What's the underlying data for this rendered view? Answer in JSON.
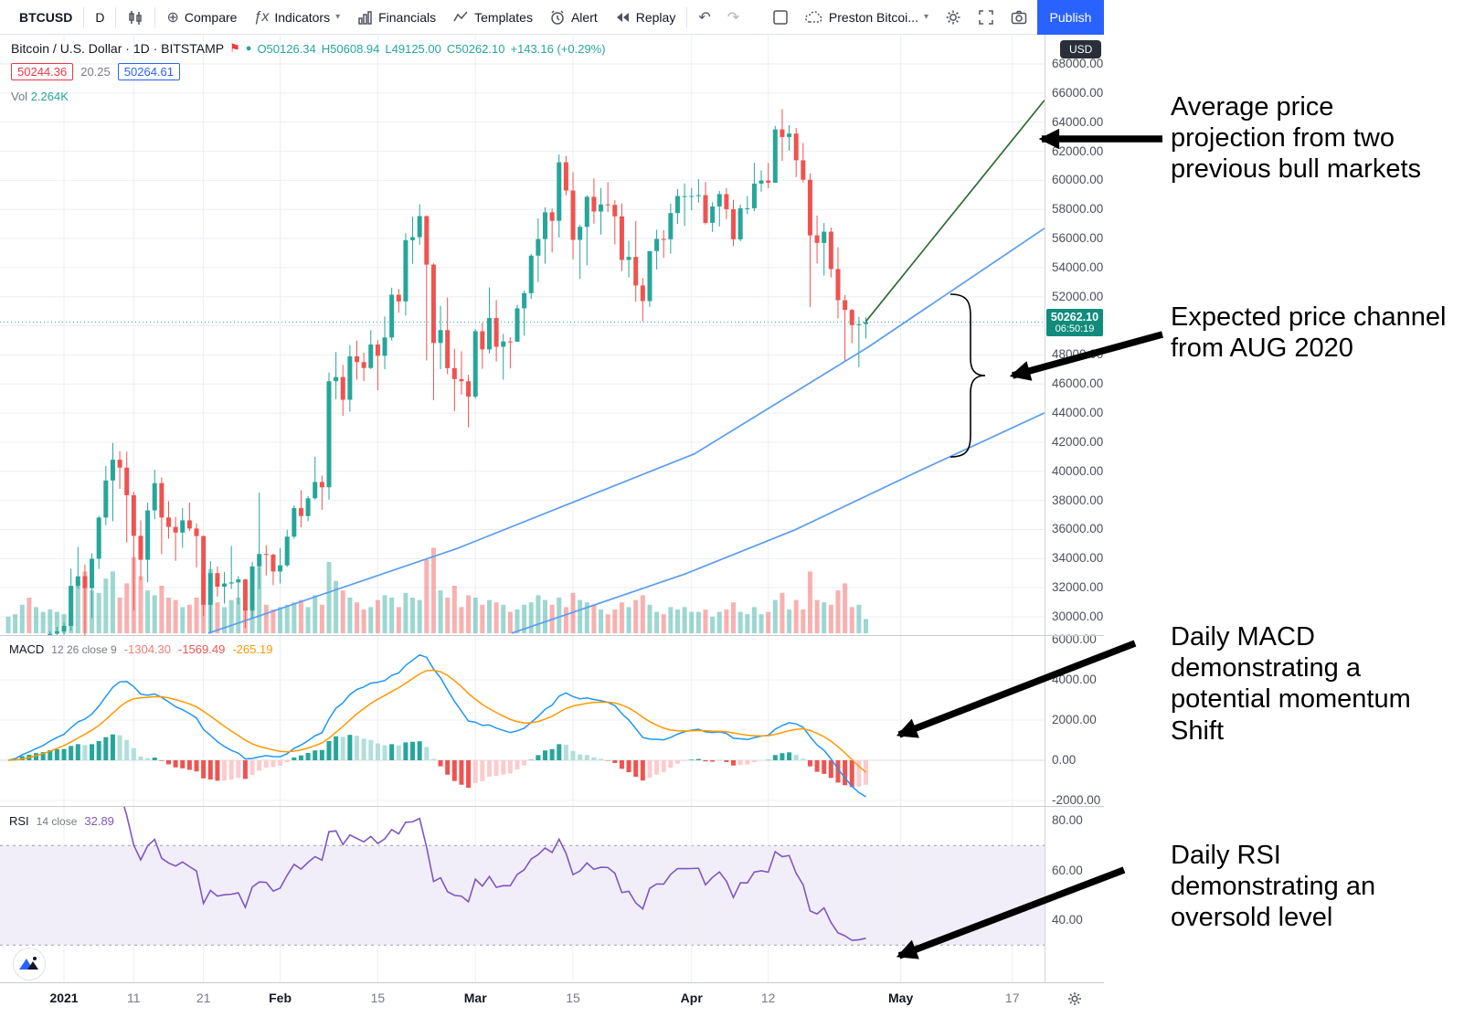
{
  "toolbar": {
    "symbol": "BTCUSD",
    "interval": "D",
    "compare": "Compare",
    "indicators": "Indicators",
    "financials": "Financials",
    "templates": "Templates",
    "alert": "Alert",
    "replay": "Replay",
    "account": "Preston Bitcoi...",
    "publish": "Publish"
  },
  "legend": {
    "series_title": "Bitcoin / U.S. Dollar · 1D · BITSTAMP",
    "o": "O50126.34",
    "h": "H50608.94",
    "l": "L49125.00",
    "c": "C50262.10",
    "change": "+143.16 (+0.29%)",
    "alert_price": "50244.36",
    "mid_value": "20.25",
    "order_price": "50264.61",
    "vol_label": "Vol",
    "vol_value": "2.264K"
  },
  "price_axis": {
    "currency": "USD",
    "tick_values": [
      68000,
      66000,
      64000,
      62000,
      60000,
      58000,
      56000,
      54000,
      52000,
      50000,
      48000,
      46000,
      44000,
      42000,
      40000,
      38000,
      36000,
      34000,
      32000,
      30000
    ],
    "badge_price": "50262.10",
    "badge_countdown": "06:50:19"
  },
  "time_axis": {
    "ticks": [
      {
        "d": 8,
        "label": "2021",
        "major": true
      },
      {
        "d": 18,
        "label": "11",
        "major": false
      },
      {
        "d": 28,
        "label": "21",
        "major": false
      },
      {
        "d": 39,
        "label": "Feb",
        "major": true
      },
      {
        "d": 53,
        "label": "15",
        "major": false
      },
      {
        "d": 67,
        "label": "Mar",
        "major": true
      },
      {
        "d": 81,
        "label": "15",
        "major": false
      },
      {
        "d": 98,
        "label": "Apr",
        "major": true
      },
      {
        "d": 109,
        "label": "12",
        "major": false
      },
      {
        "d": 128,
        "label": "May",
        "major": true
      },
      {
        "d": 144,
        "label": "17",
        "major": false
      }
    ]
  },
  "macd_panel": {
    "title": "MACD",
    "params": "12 26 close 9",
    "hist_value": "-1304.30",
    "macd_value": "-1569.49",
    "signal_value": "-265.19",
    "tick_values": [
      6000,
      4000,
      2000,
      0,
      -2000
    ]
  },
  "rsi_panel": {
    "title": "RSI",
    "params": "14 close",
    "value": "32.89",
    "tick_values": [
      80,
      60,
      40
    ],
    "band": [
      30,
      70
    ]
  },
  "annotations": [
    {
      "text": "Average price projection from two previous bull markets"
    },
    {
      "text": "Expected price channel from AUG 2020"
    },
    {
      "text": "Daily MACD demonstrating a potential momentum Shift"
    },
    {
      "text": "Daily RSI demonstrating an oversold level"
    }
  ],
  "colors": {
    "up": "#26a69a",
    "down": "#ef5350",
    "macd_line": "#2196f3",
    "signal_line": "#ff9800",
    "rsi_line": "#7e57c2",
    "channel": "#5b9cf0",
    "projection": "#2f6b33",
    "accent_blue": "#2962ff",
    "red": "#f23645"
  },
  "chart_data": {
    "type": "candlestick",
    "title": "Bitcoin / U.S. Dollar 1D BITSTAMP",
    "price_ylim": [
      28870,
      68000
    ],
    "x_unit": "daily candles, index 0 = leftmost",
    "candles": [
      [
        23241,
        23794,
        22765,
        23735,
        0.7
      ],
      [
        23735,
        24789,
        23463,
        24712,
        0.8
      ],
      [
        24712,
        26800,
        24500,
        26443,
        1.2
      ],
      [
        26443,
        28400,
        25850,
        26272,
        1.5
      ],
      [
        26272,
        27500,
        26100,
        27084,
        1.1
      ],
      [
        27084,
        27400,
        25900,
        27362,
        0.9
      ],
      [
        27362,
        29000,
        27320,
        28841,
        1.0
      ],
      [
        28841,
        29300,
        27850,
        28996,
        0.9
      ],
      [
        28996,
        29600,
        28650,
        29374,
        0.8
      ],
      [
        29374,
        33300,
        29050,
        32127,
        1.9
      ],
      [
        32127,
        34800,
        31960,
        32782,
        2.2
      ],
      [
        32782,
        33600,
        28130,
        31971,
        2.6
      ],
      [
        31971,
        34360,
        29900,
        33992,
        1.8
      ],
      [
        33992,
        36939,
        33288,
        36824,
        1.7
      ],
      [
        36824,
        40365,
        36300,
        39371,
        2.3
      ],
      [
        39371,
        41950,
        36565,
        40797,
        2.6
      ],
      [
        40797,
        41380,
        38800,
        40254,
        1.5
      ],
      [
        40254,
        41350,
        35111,
        38356,
        2.1
      ],
      [
        38356,
        38600,
        30420,
        35566,
        3.2
      ],
      [
        35566,
        36628,
        32531,
        33922,
        2.4
      ],
      [
        33922,
        37850,
        32380,
        37316,
        1.8
      ],
      [
        37316,
        40100,
        36701,
        39187,
        1.6
      ],
      [
        39187,
        39577,
        34298,
        36825,
        2.0
      ],
      [
        36825,
        37950,
        35372,
        36178,
        1.5
      ],
      [
        36178,
        36860,
        33850,
        35791,
        1.4
      ],
      [
        35791,
        37470,
        34742,
        36630,
        1.1
      ],
      [
        36630,
        37857,
        35900,
        36069,
        1.2
      ],
      [
        36069,
        36415,
        33400,
        35547,
        1.5
      ],
      [
        35547,
        35600,
        30071,
        30825,
        2.5
      ],
      [
        30825,
        33826,
        28850,
        33005,
        2.7
      ],
      [
        33005,
        33456,
        31390,
        32067,
        1.3
      ],
      [
        32067,
        33071,
        30900,
        32289,
        1.1
      ],
      [
        32289,
        34875,
        31910,
        32366,
        1.4
      ],
      [
        32366,
        32794,
        30837,
        32569,
        1.5
      ],
      [
        32569,
        32600,
        29241,
        30432,
        1.8
      ],
      [
        30432,
        33783,
        29891,
        33466,
        1.6
      ],
      [
        33466,
        38531,
        31915,
        34316,
        2.8
      ],
      [
        34316,
        34934,
        32840,
        34269,
        1.2
      ],
      [
        34269,
        34342,
        32171,
        33114,
        1.0
      ],
      [
        33114,
        34717,
        32296,
        33537,
        1.1
      ],
      [
        33537,
        35984,
        33418,
        35510,
        1.2
      ],
      [
        35510,
        37662,
        35362,
        37472,
        1.3
      ],
      [
        37472,
        38708,
        36161,
        36926,
        1.4
      ],
      [
        36926,
        38310,
        36570,
        38144,
        1.1
      ],
      [
        38144,
        41000,
        38057,
        39266,
        1.6
      ],
      [
        39266,
        39700,
        37351,
        38903,
        1.2
      ],
      [
        38903,
        46794,
        38057,
        46196,
        3.0
      ],
      [
        46196,
        48200,
        44961,
        46481,
        2.2
      ],
      [
        46481,
        47310,
        43812,
        44918,
        1.8
      ],
      [
        44918,
        48678,
        44100,
        47909,
        1.5
      ],
      [
        47909,
        48985,
        46300,
        47504,
        1.3
      ],
      [
        47504,
        48150,
        46202,
        47105,
        1.0
      ],
      [
        47105,
        49700,
        47014,
        48717,
        1.1
      ],
      [
        48717,
        49011,
        45570,
        47945,
        1.4
      ],
      [
        47945,
        50645,
        47016,
        49199,
        1.6
      ],
      [
        49199,
        52618,
        49001,
        52140,
        1.5
      ],
      [
        52140,
        52530,
        50901,
        51679,
        1.1
      ],
      [
        51679,
        56370,
        50710,
        55888,
        1.7
      ],
      [
        55888,
        57508,
        54260,
        56099,
        1.5
      ],
      [
        56099,
        58350,
        55577,
        57539,
        1.4
      ],
      [
        57539,
        57600,
        47622,
        54207,
        3.1
      ],
      [
        54207,
        54300,
        44888,
        48824,
        3.6
      ],
      [
        48824,
        51374,
        47027,
        49705,
        1.8
      ],
      [
        49705,
        51948,
        46674,
        47093,
        1.5
      ],
      [
        47093,
        48424,
        44137,
        46339,
        2.0
      ],
      [
        46339,
        48253,
        45269,
        46188,
        1.1
      ],
      [
        46188,
        46638,
        43016,
        45137,
        1.6
      ],
      [
        45137,
        49790,
        44989,
        49631,
        1.5
      ],
      [
        49631,
        50200,
        47047,
        48378,
        1.2
      ],
      [
        48378,
        52640,
        48100,
        50538,
        1.4
      ],
      [
        50538,
        51773,
        47542,
        48561,
        1.3
      ],
      [
        48561,
        49448,
        46300,
        48927,
        1.2
      ],
      [
        48927,
        49206,
        47070,
        48912,
        0.9
      ],
      [
        48912,
        51450,
        48882,
        51206,
        1.0
      ],
      [
        51206,
        52425,
        49328,
        52246,
        1.2
      ],
      [
        52246,
        54936,
        51845,
        54824,
        1.3
      ],
      [
        54824,
        57387,
        53005,
        55963,
        1.6
      ],
      [
        55963,
        58150,
        54272,
        57805,
        1.4
      ],
      [
        57805,
        58063,
        55048,
        57221,
        1.2
      ],
      [
        57221,
        61780,
        56078,
        61243,
        1.5
      ],
      [
        61243,
        61680,
        58978,
        59302,
        1.1
      ],
      [
        59302,
        60559,
        54568,
        55907,
        1.7
      ],
      [
        55907,
        56950,
        53221,
        56804,
        1.4
      ],
      [
        56804,
        58975,
        54155,
        58870,
        1.3
      ],
      [
        58870,
        60129,
        57023,
        57858,
        1.2
      ],
      [
        57858,
        59468,
        56270,
        58346,
        1.0
      ],
      [
        58346,
        59880,
        57820,
        58313,
        0.8
      ],
      [
        58313,
        58633,
        55600,
        57523,
        1.0
      ],
      [
        57523,
        58415,
        53762,
        54529,
        1.3
      ],
      [
        54529,
        55840,
        53333,
        54738,
        1.1
      ],
      [
        54738,
        57200,
        51664,
        52774,
        1.4
      ],
      [
        52774,
        53287,
        50305,
        51704,
        1.6
      ],
      [
        51704,
        55119,
        51302,
        55137,
        1.2
      ],
      [
        55137,
        56610,
        53875,
        55973,
        0.9
      ],
      [
        55973,
        56568,
        54671,
        55950,
        0.8
      ],
      [
        55950,
        58400,
        54962,
        57750,
        1.1
      ],
      [
        57750,
        59397,
        57000,
        58917,
        1.0
      ],
      [
        58917,
        59787,
        56867,
        58918,
        1.1
      ],
      [
        58918,
        59474,
        57935,
        58926,
        0.9
      ],
      [
        58926,
        60080,
        58474,
        58981,
        0.9
      ],
      [
        58981,
        59880,
        56971,
        57076,
        1.0
      ],
      [
        57076,
        58496,
        56456,
        58206,
        0.7
      ],
      [
        58206,
        59266,
        56832,
        59054,
        0.9
      ],
      [
        59054,
        59476,
        57333,
        58019,
        1.0
      ],
      [
        58019,
        58660,
        55479,
        55947,
        1.3
      ],
      [
        55947,
        58335,
        55808,
        58083,
        0.9
      ],
      [
        58083,
        58919,
        57668,
        58083,
        0.8
      ],
      [
        58083,
        61205,
        57881,
        59778,
        1.1
      ],
      [
        59778,
        60687,
        59222,
        59988,
        0.8
      ],
      [
        59988,
        61194,
        59454,
        59839,
        0.9
      ],
      [
        59839,
        63742,
        59820,
        63503,
        1.4
      ],
      [
        63503,
        64895,
        61327,
        62980,
        1.7
      ],
      [
        62980,
        63789,
        62036,
        63216,
        1.0
      ],
      [
        63216,
        63594,
        60222,
        61379,
        1.4
      ],
      [
        61379,
        62572,
        59845,
        60041,
        1.0
      ],
      [
        60041,
        60465,
        51300,
        56216,
        2.6
      ],
      [
        56216,
        57583,
        54289,
        55696,
        1.4
      ],
      [
        55696,
        57062,
        53448,
        56473,
        1.3
      ],
      [
        56473,
        56757,
        53329,
        53906,
        1.2
      ],
      [
        53906,
        55410,
        50500,
        51762,
        1.8
      ],
      [
        51762,
        52120,
        47555,
        51093,
        2.1
      ],
      [
        51093,
        51167,
        48805,
        50052,
        1.1
      ],
      [
        50052,
        50609,
        47159,
        50119,
        1.2
      ],
      [
        50126.34,
        50608.94,
        49125,
        50262.1,
        0.6
      ]
    ],
    "projection_line": [
      [
        123,
        50300
      ],
      [
        148.6,
        65500
      ]
    ],
    "channel_upper": [
      [
        28.7,
        28870
      ],
      [
        64.4,
        34700
      ],
      [
        98.4,
        41200
      ],
      [
        123.3,
        48530
      ],
      [
        148.6,
        56700
      ]
    ],
    "channel_lower": [
      [
        72.2,
        28870
      ],
      [
        97.1,
        32950
      ],
      [
        112.8,
        35970
      ],
      [
        129.9,
        39860
      ],
      [
        148.6,
        44010
      ]
    ],
    "indicators": {
      "macd": {
        "fast": 12,
        "slow": 26,
        "source": "close",
        "signal": 9,
        "ylim": [
          -2000,
          6000
        ]
      },
      "rsi": {
        "length": 14,
        "source": "close",
        "band": [
          30,
          70
        ],
        "ylim": [
          25,
          85
        ]
      }
    }
  }
}
